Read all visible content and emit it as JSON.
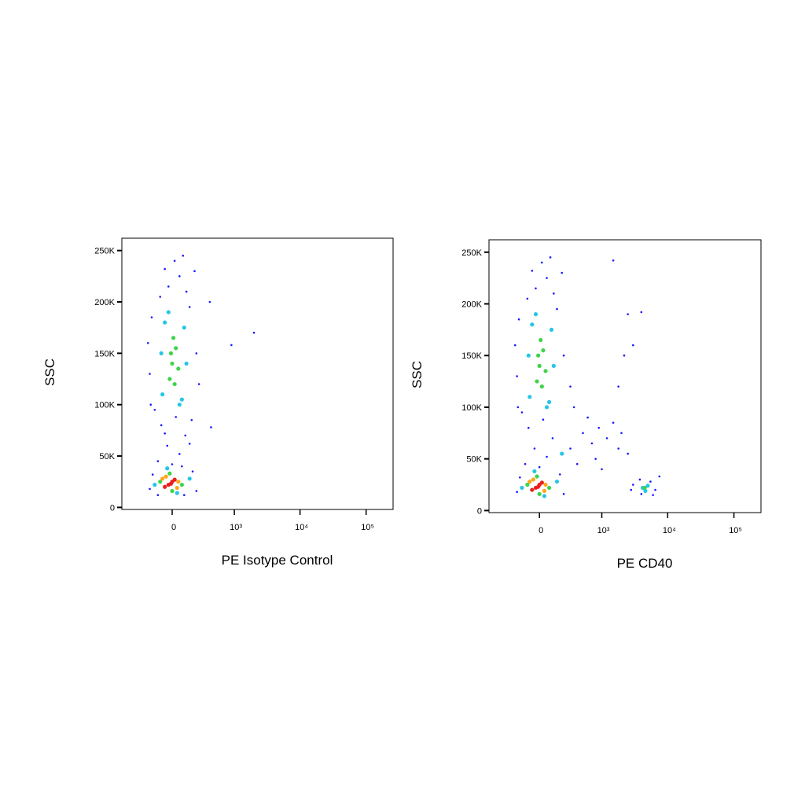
{
  "chart_data": [
    {
      "type": "scatter",
      "x_label": "PE Isotype Control",
      "y_label": "SSC",
      "x_scale": "biexponential",
      "xlim": [
        -650,
        256000
      ],
      "ylim": [
        -2000,
        262000
      ],
      "xticks": [
        0,
        {
          "value": 1000,
          "label": "10³"
        },
        {
          "value": 10000,
          "label": "10⁴"
        },
        {
          "value": 100000,
          "label": "10⁵"
        }
      ],
      "yticks": [
        0,
        {
          "value": 50000,
          "label": "50K"
        },
        {
          "value": 100000,
          "label": "100K"
        },
        {
          "value": 150000,
          "label": "150K"
        },
        {
          "value": 200000,
          "label": "200K"
        },
        {
          "value": 250000,
          "label": "250K"
        }
      ],
      "series": [
        {
          "color": "#1a1aff",
          "x": [
            -120,
            60,
            -40,
            110,
            -90,
            30,
            150,
            -150,
            0,
            80,
            -60,
            170,
            -30,
            60,
            -100,
            120,
            20,
            -60,
            150,
            -180,
            200,
            90,
            -200,
            220,
            -190,
            250,
            -220,
            -200,
            180,
            -170,
            220,
            100,
            -120,
            420,
            400,
            900,
            2000
          ],
          "values": [
            45000,
            52000,
            60000,
            70000,
            80000,
            88000,
            62000,
            95000,
            42000,
            40000,
            72000,
            85000,
            215000,
            225000,
            205000,
            210000,
            240000,
            232000,
            195000,
            185000,
            230000,
            245000,
            130000,
            150000,
            100000,
            120000,
            160000,
            18000,
            35000,
            32000,
            16000,
            12000,
            12000,
            78000,
            200000,
            158000,
            170000
          ]
        },
        {
          "color": "#25c6e6",
          "x": [
            -80,
            100,
            -60,
            80,
            -90,
            120,
            -30,
            60,
            -150,
            150,
            -40,
            40
          ],
          "values": [
            110000,
            175000,
            180000,
            105000,
            150000,
            140000,
            190000,
            100000,
            22000,
            28000,
            38000,
            14000
          ]
        },
        {
          "color": "#3fd34a",
          "x": [
            0,
            30,
            -20,
            50,
            10,
            -10,
            20,
            -100,
            80,
            -20,
            0
          ],
          "values": [
            140000,
            155000,
            125000,
            135000,
            165000,
            150000,
            120000,
            25000,
            22000,
            33000,
            16000
          ]
        },
        {
          "color": "#ffa51a",
          "x": [
            -80,
            40,
            -50,
            50
          ],
          "values": [
            28000,
            19000,
            30000,
            25000
          ]
        },
        {
          "color": "#e8211d",
          "x": [
            -30,
            0,
            -60,
            20,
            -10
          ],
          "values": [
            22000,
            25000,
            20000,
            27000,
            23000
          ]
        }
      ]
    },
    {
      "type": "scatter",
      "x_label": "PE CD40",
      "y_label": "SSC",
      "x_scale": "biexponential",
      "xlim": [
        -650,
        256000
      ],
      "ylim": [
        -2000,
        262000
      ],
      "xticks": [
        0,
        {
          "value": 1000,
          "label": "10³"
        },
        {
          "value": 10000,
          "label": "10⁴"
        },
        {
          "value": 100000,
          "label": "10⁵"
        }
      ],
      "yticks": [
        0,
        {
          "value": 50000,
          "label": "50K"
        },
        {
          "value": 100000,
          "label": "100K"
        },
        {
          "value": 150000,
          "label": "150K"
        },
        {
          "value": 200000,
          "label": "200K"
        },
        {
          "value": 250000,
          "label": "250K"
        }
      ],
      "series": [
        {
          "color": "#1a1aff",
          "x": [
            -120,
            60,
            -40,
            110,
            -90,
            30,
            -150,
            0,
            -30,
            60,
            -100,
            120,
            20,
            -60,
            150,
            -180,
            200,
            90,
            -200,
            220,
            -190,
            -220,
            -200,
            180,
            -170,
            220,
            300,
            500,
            700,
            900,
            1200,
            1500,
            400,
            800,
            1800,
            2500,
            600,
            1000,
            2000,
            350,
            300,
            2500,
            4000,
            1500,
            3000,
            1800,
            2200,
            3000,
            6500,
            3800,
            5500,
            4000,
            7500,
            2800,
            6000
          ],
          "values": [
            45000,
            52000,
            60000,
            70000,
            80000,
            88000,
            95000,
            42000,
            215000,
            225000,
            205000,
            210000,
            240000,
            232000,
            195000,
            185000,
            230000,
            245000,
            130000,
            150000,
            100000,
            160000,
            18000,
            35000,
            32000,
            16000,
            60000,
            75000,
            65000,
            80000,
            70000,
            85000,
            45000,
            50000,
            60000,
            55000,
            90000,
            40000,
            75000,
            100000,
            120000,
            190000,
            192000,
            242000,
            160000,
            120000,
            150000,
            25000,
            20000,
            30000,
            28000,
            16000,
            33000,
            20000,
            15000
          ]
        },
        {
          "color": "#25c6e6",
          "x": [
            -80,
            100,
            -60,
            80,
            -90,
            120,
            -30,
            60,
            -150,
            150,
            -40,
            40,
            200,
            4200,
            5000,
            4600
          ],
          "values": [
            110000,
            175000,
            180000,
            105000,
            150000,
            140000,
            190000,
            100000,
            22000,
            28000,
            38000,
            14000,
            55000,
            22000,
            24000,
            19000
          ]
        },
        {
          "color": "#3fd34a",
          "x": [
            0,
            30,
            -20,
            50,
            10,
            -10,
            20,
            -100,
            80,
            -20,
            0,
            4500
          ],
          "values": [
            140000,
            155000,
            125000,
            135000,
            165000,
            150000,
            120000,
            25000,
            22000,
            33000,
            16000,
            22000
          ]
        },
        {
          "color": "#ffa51a",
          "x": [
            -80,
            40,
            -50,
            50
          ],
          "values": [
            28000,
            19000,
            30000,
            25000
          ]
        },
        {
          "color": "#e8211d",
          "x": [
            -30,
            0,
            -60,
            20,
            -10
          ],
          "values": [
            22000,
            25000,
            20000,
            27000,
            23000
          ]
        }
      ]
    }
  ]
}
